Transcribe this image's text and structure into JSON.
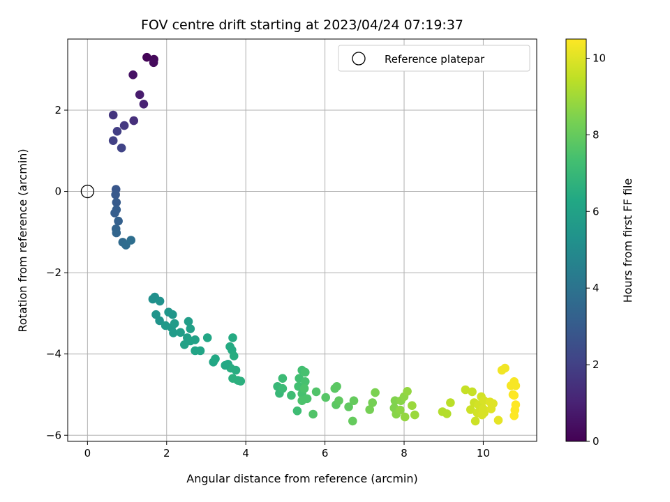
{
  "chart_data": {
    "type": "scatter",
    "title": "FOV centre drift starting at 2023/04/24 07:19:37",
    "xlabel": "Angular distance from reference (arcmin)",
    "ylabel": "Rotation from reference (arcmin)",
    "xlim": [
      -0.5,
      11.35
    ],
    "ylim": [
      -6.15,
      3.75
    ],
    "xticks": [
      0,
      2,
      4,
      6,
      8,
      10
    ],
    "yticks": [
      -6,
      -4,
      -2,
      0,
      2
    ],
    "xtick_labels": [
      "0",
      "2",
      "4",
      "6",
      "8",
      "10"
    ],
    "ytick_labels": [
      "−6",
      "−4",
      "−2",
      "0",
      "2"
    ],
    "grid": true,
    "legend": {
      "position": "top-right",
      "label": "Reference platepar"
    },
    "reference_point": {
      "x": 0,
      "y": 0
    },
    "colorbar": {
      "label": "Hours from first FF file",
      "colormap": "viridis",
      "range": [
        0,
        10.5
      ],
      "ticks": [
        0,
        2,
        4,
        6,
        8,
        10
      ],
      "tick_labels": [
        "0",
        "2",
        "4",
        "6",
        "8",
        "10"
      ]
    },
    "points": [
      {
        "x": 1.5,
        "y": 3.3,
        "t": 0.1
      },
      {
        "x": 1.68,
        "y": 3.25,
        "t": 0.2
      },
      {
        "x": 1.67,
        "y": 3.17,
        "t": 0.3
      },
      {
        "x": 1.15,
        "y": 2.87,
        "t": 0.5
      },
      {
        "x": 1.32,
        "y": 2.38,
        "t": 0.8
      },
      {
        "x": 1.42,
        "y": 2.15,
        "t": 1.0
      },
      {
        "x": 0.65,
        "y": 1.88,
        "t": 1.6
      },
      {
        "x": 1.17,
        "y": 1.74,
        "t": 1.4
      },
      {
        "x": 0.93,
        "y": 1.62,
        "t": 1.7
      },
      {
        "x": 0.75,
        "y": 1.48,
        "t": 1.9
      },
      {
        "x": 0.65,
        "y": 1.25,
        "t": 2.0
      },
      {
        "x": 0.86,
        "y": 1.07,
        "t": 2.1
      },
      {
        "x": 0.72,
        "y": 0.05,
        "t": 2.8
      },
      {
        "x": 0.71,
        "y": -0.08,
        "t": 2.9
      },
      {
        "x": 0.73,
        "y": -0.27,
        "t": 3.0
      },
      {
        "x": 0.73,
        "y": -0.45,
        "t": 3.1
      },
      {
        "x": 0.69,
        "y": -0.53,
        "t": 3.1
      },
      {
        "x": 0.78,
        "y": -0.73,
        "t": 3.2
      },
      {
        "x": 0.72,
        "y": -0.92,
        "t": 3.3
      },
      {
        "x": 0.73,
        "y": -1.02,
        "t": 3.4
      },
      {
        "x": 0.89,
        "y": -1.25,
        "t": 3.6
      },
      {
        "x": 0.97,
        "y": -1.32,
        "t": 3.7
      },
      {
        "x": 1.1,
        "y": -1.2,
        "t": 3.8
      },
      {
        "x": 1.65,
        "y": -2.65,
        "t": 5.2
      },
      {
        "x": 1.7,
        "y": -2.6,
        "t": 5.2
      },
      {
        "x": 1.83,
        "y": -2.7,
        "t": 5.3
      },
      {
        "x": 1.73,
        "y": -3.03,
        "t": 5.4
      },
      {
        "x": 1.82,
        "y": -3.18,
        "t": 5.4
      },
      {
        "x": 2.05,
        "y": -2.97,
        "t": 5.5
      },
      {
        "x": 2.15,
        "y": -3.03,
        "t": 5.5
      },
      {
        "x": 1.97,
        "y": -3.3,
        "t": 5.6
      },
      {
        "x": 2.12,
        "y": -3.35,
        "t": 5.6
      },
      {
        "x": 2.2,
        "y": -3.25,
        "t": 5.7
      },
      {
        "x": 2.17,
        "y": -3.48,
        "t": 5.7
      },
      {
        "x": 2.35,
        "y": -3.47,
        "t": 5.8
      },
      {
        "x": 2.55,
        "y": -3.2,
        "t": 5.8
      },
      {
        "x": 2.6,
        "y": -3.38,
        "t": 5.9
      },
      {
        "x": 2.52,
        "y": -3.6,
        "t": 5.9
      },
      {
        "x": 2.45,
        "y": -3.77,
        "t": 6.0
      },
      {
        "x": 2.6,
        "y": -3.68,
        "t": 6.0
      },
      {
        "x": 2.72,
        "y": -3.65,
        "t": 6.0
      },
      {
        "x": 2.72,
        "y": -3.92,
        "t": 6.1
      },
      {
        "x": 2.85,
        "y": -3.92,
        "t": 6.1
      },
      {
        "x": 3.03,
        "y": -3.6,
        "t": 6.2
      },
      {
        "x": 3.18,
        "y": -4.2,
        "t": 6.2
      },
      {
        "x": 3.23,
        "y": -4.12,
        "t": 6.3
      },
      {
        "x": 3.55,
        "y": -4.25,
        "t": 6.3
      },
      {
        "x": 3.6,
        "y": -3.82,
        "t": 6.4
      },
      {
        "x": 3.67,
        "y": -3.6,
        "t": 6.4
      },
      {
        "x": 3.65,
        "y": -3.9,
        "t": 6.4
      },
      {
        "x": 3.7,
        "y": -4.05,
        "t": 6.5
      },
      {
        "x": 3.62,
        "y": -4.35,
        "t": 6.5
      },
      {
        "x": 3.75,
        "y": -4.4,
        "t": 6.5
      },
      {
        "x": 3.67,
        "y": -4.6,
        "t": 6.6
      },
      {
        "x": 3.8,
        "y": -4.65,
        "t": 6.6
      },
      {
        "x": 3.87,
        "y": -4.67,
        "t": 6.6
      },
      {
        "x": 3.48,
        "y": -4.28,
        "t": 6.3
      },
      {
        "x": 4.8,
        "y": -4.8,
        "t": 7.0
      },
      {
        "x": 4.85,
        "y": -4.97,
        "t": 7.0
      },
      {
        "x": 4.93,
        "y": -4.6,
        "t": 7.1
      },
      {
        "x": 4.93,
        "y": -4.85,
        "t": 7.1
      },
      {
        "x": 5.15,
        "y": -5.02,
        "t": 7.2
      },
      {
        "x": 5.3,
        "y": -5.4,
        "t": 7.2
      },
      {
        "x": 5.35,
        "y": -4.6,
        "t": 7.3
      },
      {
        "x": 5.33,
        "y": -4.8,
        "t": 7.3
      },
      {
        "x": 5.42,
        "y": -4.4,
        "t": 7.3
      },
      {
        "x": 5.5,
        "y": -4.45,
        "t": 7.4
      },
      {
        "x": 5.5,
        "y": -4.68,
        "t": 7.4
      },
      {
        "x": 5.42,
        "y": -4.98,
        "t": 7.4
      },
      {
        "x": 5.42,
        "y": -5.15,
        "t": 7.5
      },
      {
        "x": 5.55,
        "y": -5.1,
        "t": 7.5
      },
      {
        "x": 5.48,
        "y": -4.85,
        "t": 7.5
      },
      {
        "x": 5.7,
        "y": -5.48,
        "t": 7.6
      },
      {
        "x": 5.78,
        "y": -4.93,
        "t": 7.6
      },
      {
        "x": 6.02,
        "y": -5.07,
        "t": 7.7
      },
      {
        "x": 6.25,
        "y": -4.85,
        "t": 7.8
      },
      {
        "x": 6.3,
        "y": -4.8,
        "t": 7.8
      },
      {
        "x": 6.28,
        "y": -5.25,
        "t": 7.8
      },
      {
        "x": 6.35,
        "y": -5.15,
        "t": 7.9
      },
      {
        "x": 6.6,
        "y": -5.3,
        "t": 7.9
      },
      {
        "x": 6.7,
        "y": -5.65,
        "t": 8.0
      },
      {
        "x": 6.73,
        "y": -5.15,
        "t": 8.0
      },
      {
        "x": 7.13,
        "y": -5.37,
        "t": 8.3
      },
      {
        "x": 7.2,
        "y": -5.2,
        "t": 8.3
      },
      {
        "x": 7.27,
        "y": -4.95,
        "t": 8.4
      },
      {
        "x": 7.75,
        "y": -5.33,
        "t": 8.5
      },
      {
        "x": 7.77,
        "y": -5.15,
        "t": 8.5
      },
      {
        "x": 7.8,
        "y": -5.48,
        "t": 8.6
      },
      {
        "x": 7.92,
        "y": -5.15,
        "t": 8.6
      },
      {
        "x": 8.0,
        "y": -5.05,
        "t": 8.7
      },
      {
        "x": 7.9,
        "y": -5.38,
        "t": 8.7
      },
      {
        "x": 8.02,
        "y": -5.55,
        "t": 8.8
      },
      {
        "x": 8.08,
        "y": -4.92,
        "t": 8.8
      },
      {
        "x": 8.2,
        "y": -5.27,
        "t": 8.9
      },
      {
        "x": 8.27,
        "y": -5.5,
        "t": 8.9
      },
      {
        "x": 8.97,
        "y": -5.42,
        "t": 9.3
      },
      {
        "x": 9.08,
        "y": -5.47,
        "t": 9.3
      },
      {
        "x": 9.17,
        "y": -5.2,
        "t": 9.4
      },
      {
        "x": 9.55,
        "y": -4.88,
        "t": 9.6
      },
      {
        "x": 9.72,
        "y": -4.93,
        "t": 9.6
      },
      {
        "x": 9.68,
        "y": -5.37,
        "t": 9.7
      },
      {
        "x": 9.77,
        "y": -5.2,
        "t": 9.7
      },
      {
        "x": 9.8,
        "y": -5.65,
        "t": 9.7
      },
      {
        "x": 9.88,
        "y": -5.25,
        "t": 9.8
      },
      {
        "x": 9.85,
        "y": -5.45,
        "t": 9.8
      },
      {
        "x": 9.95,
        "y": -5.05,
        "t": 9.8
      },
      {
        "x": 10.02,
        "y": -5.15,
        "t": 9.9
      },
      {
        "x": 10.0,
        "y": -5.35,
        "t": 9.9
      },
      {
        "x": 9.97,
        "y": -5.5,
        "t": 9.9
      },
      {
        "x": 10.02,
        "y": -5.45,
        "t": 9.9
      },
      {
        "x": 10.17,
        "y": -5.18,
        "t": 10.0
      },
      {
        "x": 10.25,
        "y": -5.22,
        "t": 10.0
      },
      {
        "x": 10.2,
        "y": -5.35,
        "t": 10.0
      },
      {
        "x": 10.38,
        "y": -5.63,
        "t": 10.1
      },
      {
        "x": 10.47,
        "y": -4.4,
        "t": 10.3
      },
      {
        "x": 10.55,
        "y": -4.35,
        "t": 10.3
      },
      {
        "x": 10.7,
        "y": -4.78,
        "t": 10.4
      },
      {
        "x": 10.78,
        "y": -4.68,
        "t": 10.4
      },
      {
        "x": 10.82,
        "y": -4.78,
        "t": 10.4
      },
      {
        "x": 10.75,
        "y": -5.0,
        "t": 10.4
      },
      {
        "x": 10.78,
        "y": -5.02,
        "t": 10.5
      },
      {
        "x": 10.82,
        "y": -5.25,
        "t": 10.5
      },
      {
        "x": 10.8,
        "y": -5.38,
        "t": 10.5
      },
      {
        "x": 10.78,
        "y": -5.52,
        "t": 10.5
      }
    ]
  }
}
